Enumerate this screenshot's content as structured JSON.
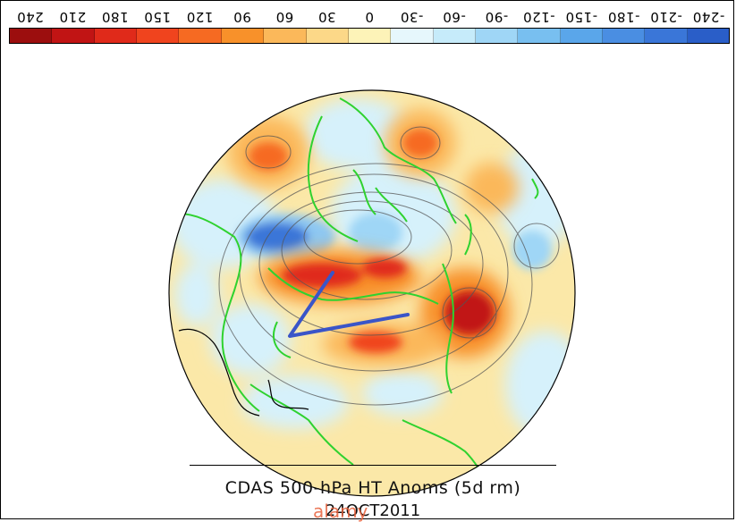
{
  "colorbar": {
    "labels": [
      "240",
      "210",
      "180",
      "150",
      "120",
      "90",
      "60",
      "30",
      "0",
      "-30",
      "-60",
      "-90",
      "-120",
      "-150",
      "-180",
      "-210",
      "-240"
    ],
    "colors": [
      "#9c0e0e",
      "#c11414",
      "#e02a1a",
      "#f0441e",
      "#f66a22",
      "#f8912a",
      "#fbb85a",
      "#fcd888",
      "#fdf3b8",
      "#e6f7fc",
      "#c6ebfa",
      "#9fd6f6",
      "#78bff0",
      "#5aa6ea",
      "#4a8ee2",
      "#3a76d8",
      "#2a5ec8"
    ]
  },
  "map": {
    "trough_line_color": "#3a55c8",
    "coast_color": "#2fd22f"
  },
  "title": "CDAS 500-hPa HT Anoms (5d rm)",
  "date": "24OCT2011",
  "watermark": "alamy"
}
